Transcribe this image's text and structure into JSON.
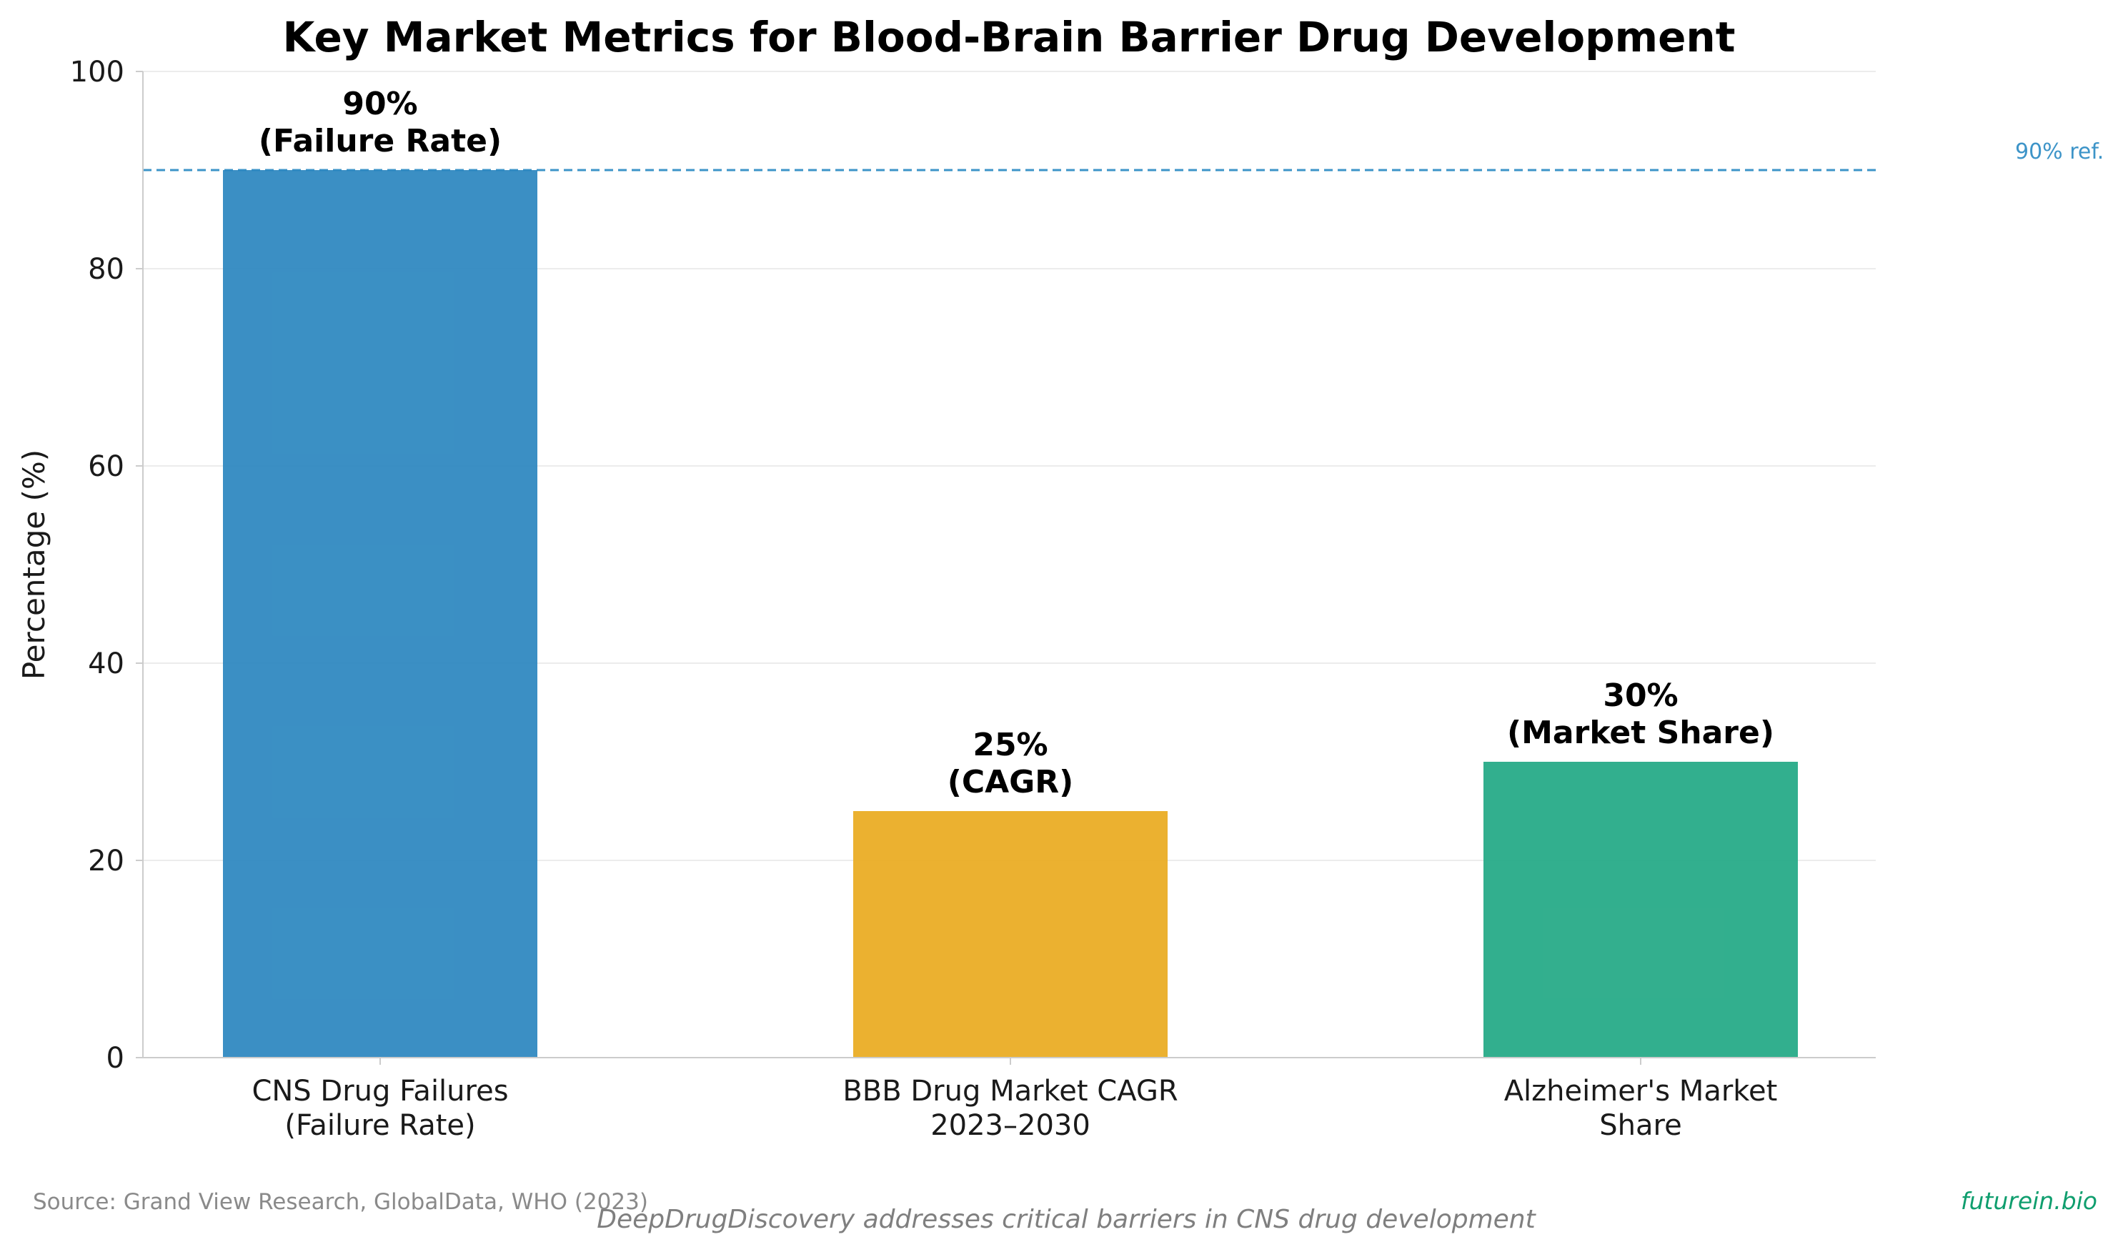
{
  "chart_data": {
    "type": "bar",
    "title": "Key Market Metrics for Blood-Brain Barrier Drug Development",
    "xlabel": "",
    "ylabel": "Percentage (%)",
    "ylim": [
      0,
      100
    ],
    "yticks": [
      "0",
      "20",
      "40",
      "60",
      "80",
      "100"
    ],
    "grid": true,
    "categories": [
      [
        "CNS Drug Failures",
        "(Failure Rate)"
      ],
      [
        "BBB Drug Market CAGR",
        "2023–2030"
      ],
      [
        "Alzheimer's Market",
        "Share"
      ]
    ],
    "values": [
      90,
      25,
      30
    ],
    "bar_labels": [
      [
        "90%",
        "(Failure Rate)"
      ],
      [
        "25%",
        "(CAGR)"
      ],
      [
        "30%",
        "(Market Share)"
      ]
    ],
    "colors": [
      "#2a86bf",
      "#e9aa1e",
      "#21a884"
    ],
    "reference_line": {
      "value": 90,
      "label": "90% ref.",
      "color": "#3d94c8",
      "style": "dashed"
    }
  },
  "footer": {
    "source": "Source: Grand View Research, GlobalData, WHO (2023)",
    "tagline": "DeepDrugDiscovery addresses critical barriers in CNS drug development",
    "brand": "futurein.bio",
    "brand_color": "#0f9e6e"
  }
}
